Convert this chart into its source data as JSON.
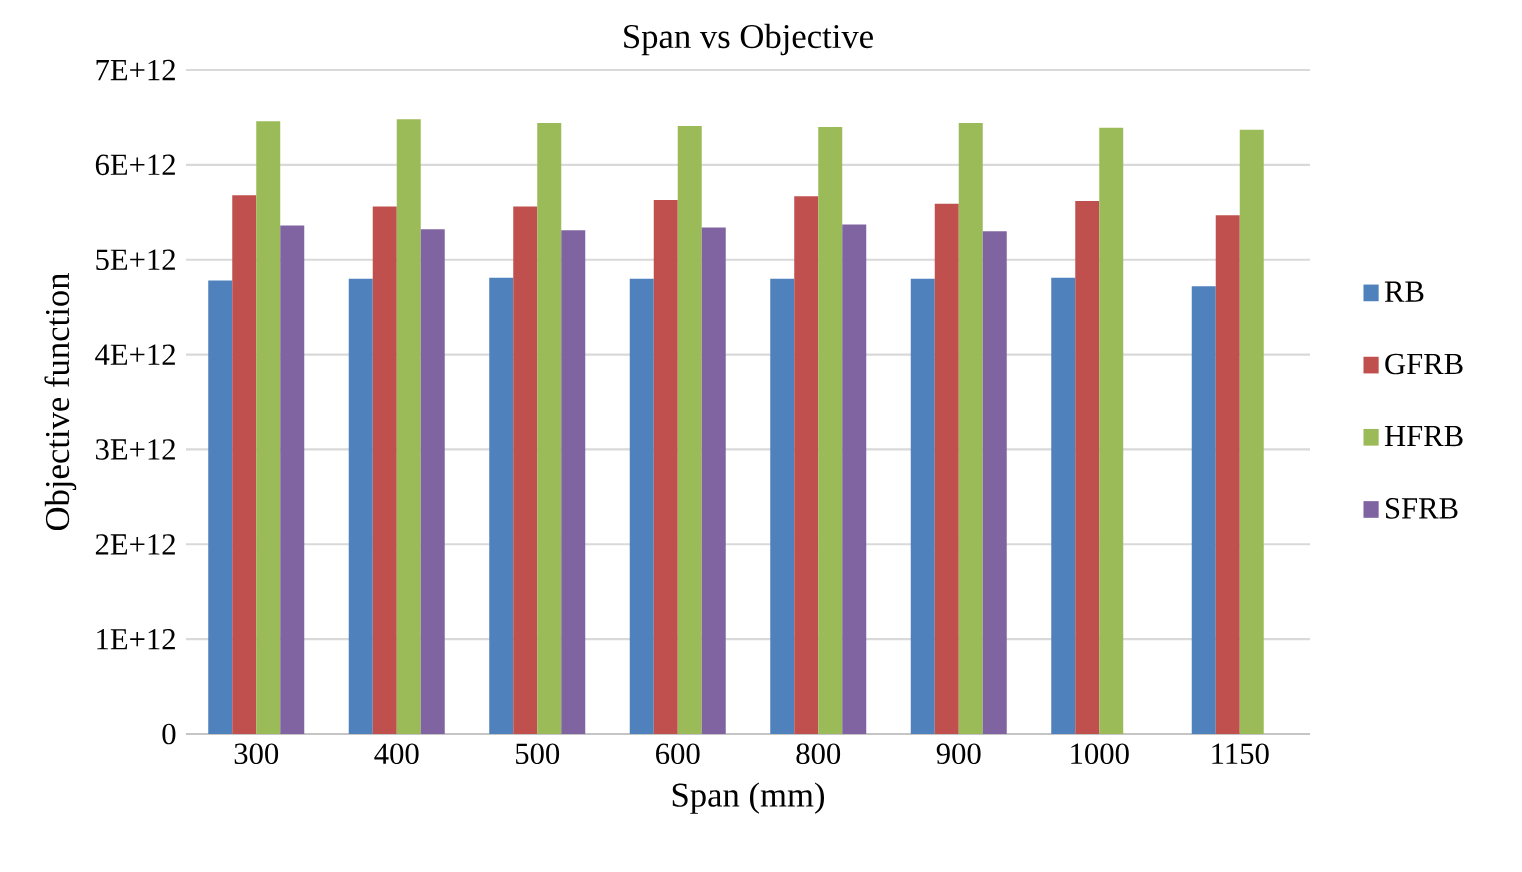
{
  "chart_data": {
    "type": "bar",
    "title": "Span vs Objective",
    "xlabel": "Span (mm)",
    "ylabel": "Objective function",
    "categories": [
      "300",
      "400",
      "500",
      "600",
      "800",
      "900",
      "1000",
      "1150"
    ],
    "series": [
      {
        "name": "RB",
        "color": "#4f81bd",
        "values": [
          4780000000000,
          4800000000000,
          4810000000000,
          4800000000000,
          4800000000000,
          4800000000000,
          4810000000000,
          4720000000000
        ]
      },
      {
        "name": "GFRB",
        "color": "#c0504d",
        "values": [
          5680000000000,
          5560000000000,
          5560000000000,
          5630000000000,
          5670000000000,
          5590000000000,
          5620000000000,
          5470000000000
        ]
      },
      {
        "name": "HFRB",
        "color": "#9bbb59",
        "values": [
          6460000000000,
          6480000000000,
          6440000000000,
          6410000000000,
          6400000000000,
          6440000000000,
          6390000000000,
          6370000000000
        ]
      },
      {
        "name": "SFRB",
        "color": "#8064a2",
        "values": [
          5360000000000,
          5320000000000,
          5310000000000,
          5340000000000,
          5370000000000,
          5300000000000,
          null,
          null
        ]
      }
    ],
    "ylim": [
      0,
      7000000000000
    ],
    "yticks": [
      0,
      {
        "value": 1000000000000,
        "label": "1E+12"
      },
      {
        "value": 2000000000000,
        "label": "2E+12"
      },
      {
        "value": 3000000000000,
        "label": "3E+12"
      },
      {
        "value": 4000000000000,
        "label": "4E+12"
      },
      {
        "value": 5000000000000,
        "label": "5E+12"
      },
      {
        "value": 6000000000000,
        "label": "6E+12"
      },
      {
        "value": 7000000000000,
        "label": "7E+12"
      }
    ],
    "grid": "y",
    "legend": "right"
  }
}
